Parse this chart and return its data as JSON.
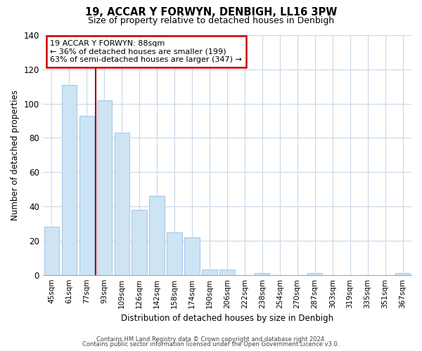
{
  "title": "19, ACCAR Y FORWYN, DENBIGH, LL16 3PW",
  "subtitle": "Size of property relative to detached houses in Denbigh",
  "xlabel": "Distribution of detached houses by size in Denbigh",
  "ylabel": "Number of detached properties",
  "footer_line1": "Contains HM Land Registry data © Crown copyright and database right 2024.",
  "footer_line2": "Contains public sector information licensed under the Open Government Licence v3.0.",
  "bin_labels": [
    "45sqm",
    "61sqm",
    "77sqm",
    "93sqm",
    "109sqm",
    "126sqm",
    "142sqm",
    "158sqm",
    "174sqm",
    "190sqm",
    "206sqm",
    "222sqm",
    "238sqm",
    "254sqm",
    "270sqm",
    "287sqm",
    "303sqm",
    "319sqm",
    "335sqm",
    "351sqm",
    "367sqm"
  ],
  "bar_heights": [
    28,
    111,
    93,
    102,
    83,
    38,
    46,
    25,
    22,
    3,
    3,
    0,
    1,
    0,
    0,
    1,
    0,
    0,
    0,
    0,
    1
  ],
  "bar_color": "#cce4f4",
  "bar_edge_color": "#a8c8e8",
  "marker_color": "#990000",
  "annotation_title": "19 ACCAR Y FORWYN: 88sqm",
  "annotation_line2": "← 36% of detached houses are smaller (199)",
  "annotation_line3": "63% of semi-detached houses are larger (347) →",
  "annotation_box_color": "#ffffff",
  "annotation_box_edge_color": "#cc0000",
  "ylim": [
    0,
    140
  ],
  "yticks": [
    0,
    20,
    40,
    60,
    80,
    100,
    120,
    140
  ],
  "background_color": "#ffffff",
  "grid_color": "#c8d8e8"
}
